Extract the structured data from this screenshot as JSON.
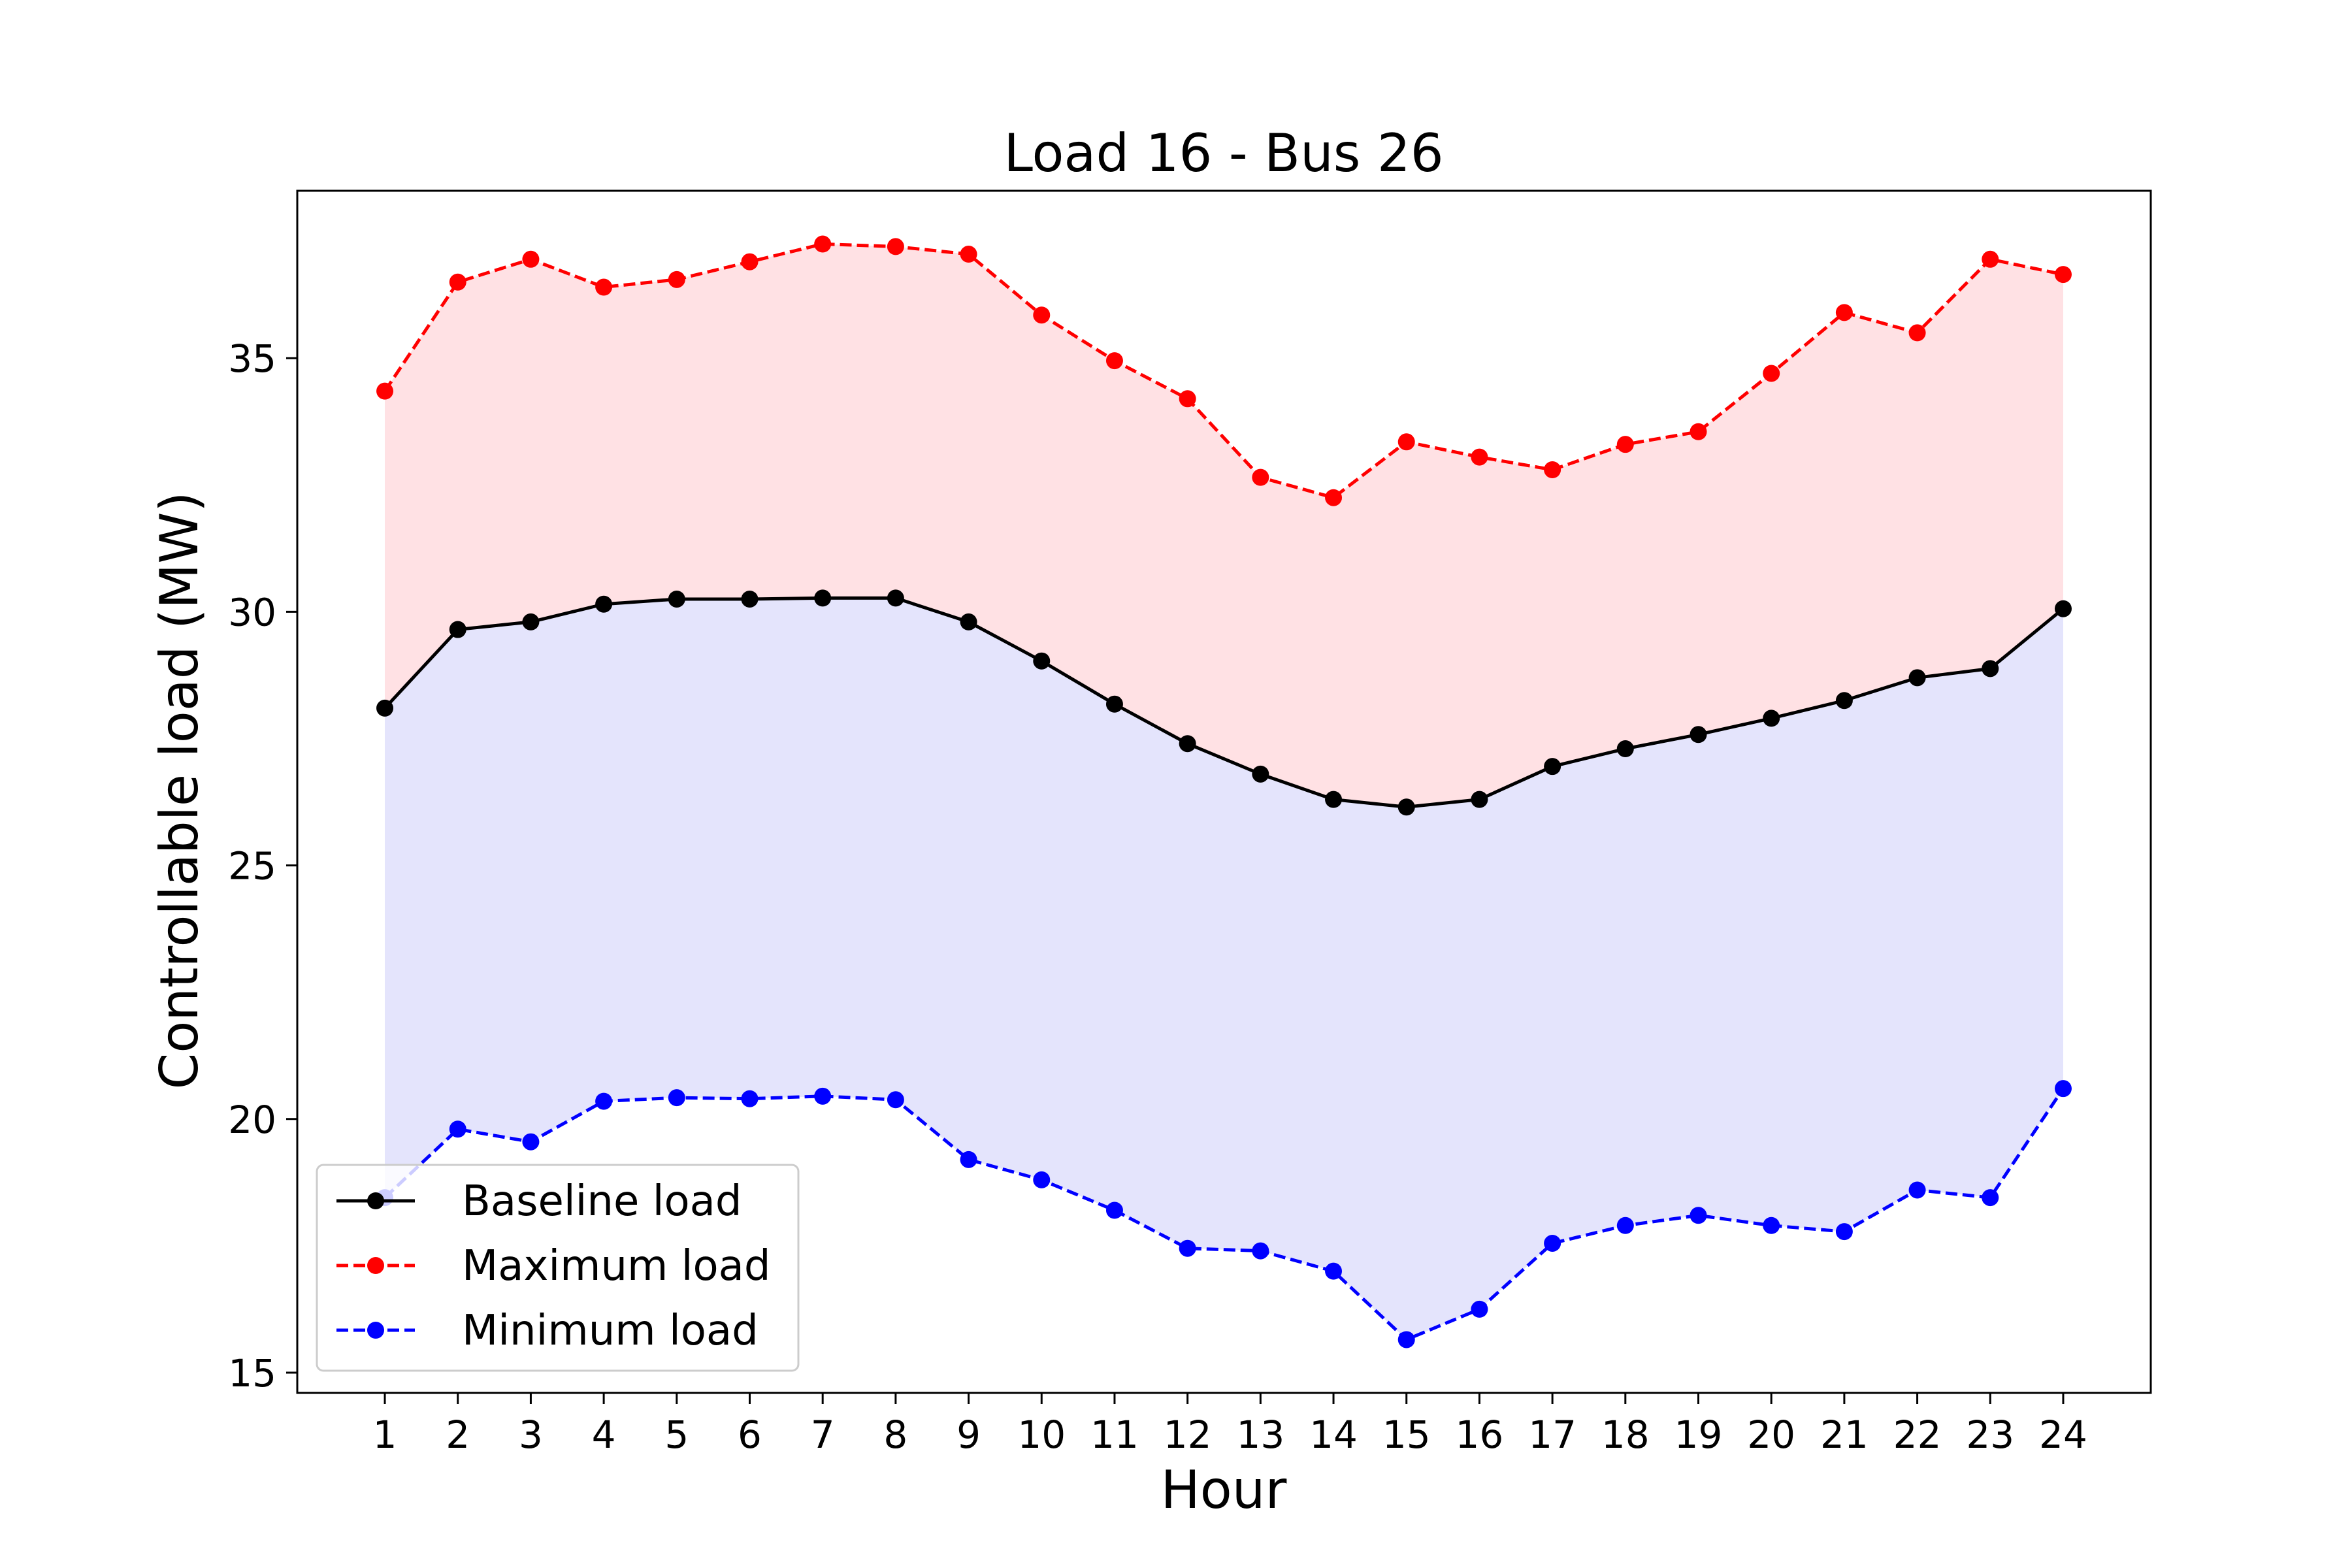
{
  "chart_data": {
    "type": "line",
    "title": "Load 16 - Bus 26",
    "xlabel": "Hour",
    "ylabel": "Controllable load (MW)",
    "x": [
      1,
      2,
      3,
      4,
      5,
      6,
      7,
      8,
      9,
      10,
      11,
      12,
      13,
      14,
      15,
      16,
      17,
      18,
      19,
      20,
      21,
      22,
      23,
      24
    ],
    "ylim": [
      14.6,
      38.3
    ],
    "xlim": [
      -0.2,
      25.2
    ],
    "yticks": [
      15,
      20,
      25,
      30,
      35
    ],
    "grid": false,
    "legend_position": "lower-left",
    "series": [
      {
        "name": "Baseline load",
        "color": "#000000",
        "linestyle": "solid",
        "values": [
          28.1,
          29.65,
          29.8,
          30.15,
          30.25,
          30.25,
          30.27,
          30.27,
          29.8,
          29.03,
          28.18,
          27.4,
          26.8,
          26.3,
          26.15,
          26.3,
          26.95,
          27.3,
          27.58,
          27.9,
          28.25,
          28.7,
          28.88,
          30.06
        ]
      },
      {
        "name": "Maximum load",
        "color": "#ff0000",
        "linestyle": "dashed",
        "values": [
          34.35,
          36.5,
          36.95,
          36.4,
          36.55,
          36.9,
          37.25,
          37.2,
          37.05,
          35.85,
          34.95,
          34.2,
          32.65,
          32.25,
          33.35,
          33.05,
          32.8,
          33.3,
          33.55,
          34.7,
          35.9,
          35.5,
          36.95,
          36.65
        ]
      },
      {
        "name": "Minimum load",
        "color": "#0000ff",
        "linestyle": "dashed",
        "values": [
          18.45,
          19.8,
          19.55,
          20.35,
          20.42,
          20.4,
          20.45,
          20.38,
          19.2,
          18.8,
          18.2,
          17.45,
          17.4,
          17.0,
          15.65,
          16.25,
          17.55,
          17.9,
          18.1,
          17.9,
          17.78,
          18.6,
          18.45,
          20.6
        ]
      }
    ],
    "fills": [
      {
        "between": [
          "Baseline load",
          "Maximum load"
        ],
        "color": "#ffe1e4"
      },
      {
        "between": [
          "Minimum load",
          "Baseline load"
        ],
        "color": "#e4e4fc"
      }
    ]
  }
}
